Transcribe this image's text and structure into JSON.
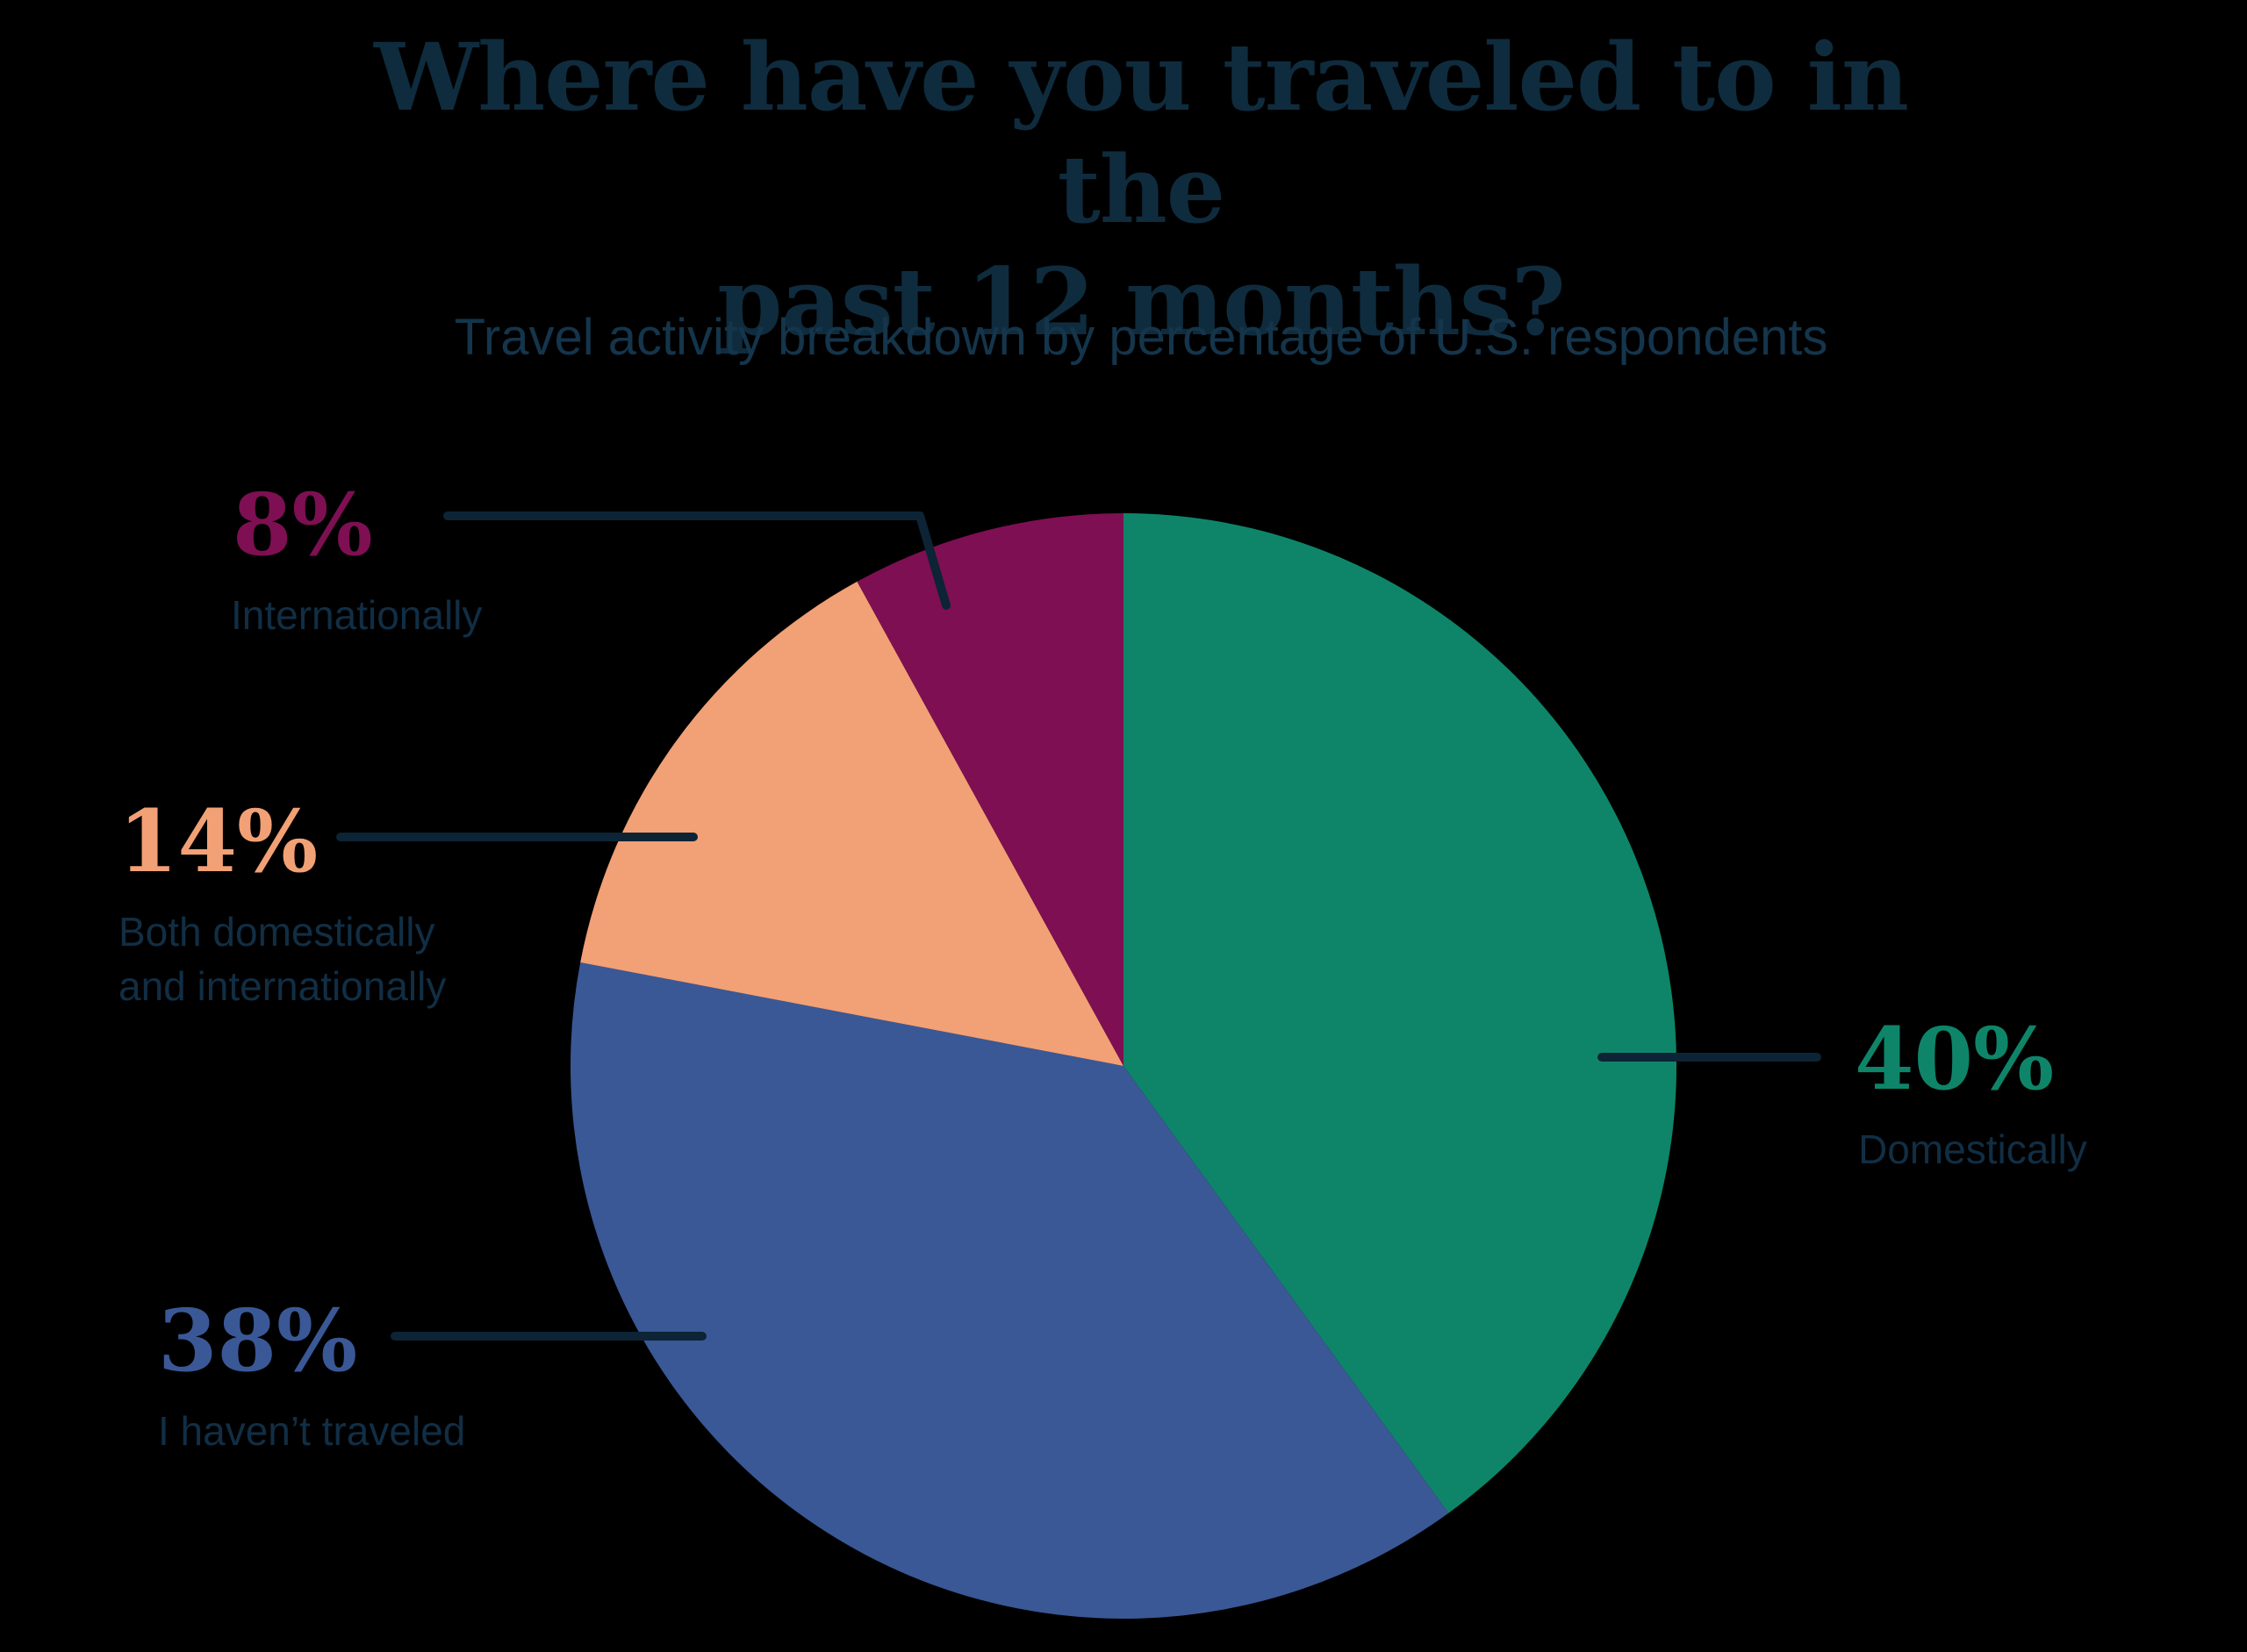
{
  "page": {
    "background": "#000000"
  },
  "title": {
    "line1": "Where have you traveled to in the",
    "line2": "past 12 months?",
    "color": "#0F2C3E"
  },
  "subtitle": {
    "text": "Travel activity breakdown by percentage of U.S. respondents",
    "color": "#14354B"
  },
  "chart_data": {
    "type": "pie",
    "title": "Where have you traveled to in the past 12 months?",
    "subtitle": "Travel activity breakdown by percentage of U.S. respondents",
    "start_angle_deg": 0,
    "direction": "clockwise",
    "legend_position": "external-callouts",
    "label_color": "#112E44",
    "leader_line_color": "#0C2435",
    "slices": [
      {
        "label": "Domestically",
        "value": 40,
        "display": "40%",
        "color": "#0E8569"
      },
      {
        "label": "I haven’t traveled",
        "value": 38,
        "display": "38%",
        "color": "#3A5896"
      },
      {
        "label": "Both domestically and internationally",
        "value": 14,
        "display": "14%",
        "color": "#F2A075",
        "label_line1": "Both domestically",
        "label_line2": "and internationally"
      },
      {
        "label": "Internationally",
        "value": 8,
        "display": "8%",
        "color": "#7E0F52"
      }
    ]
  }
}
